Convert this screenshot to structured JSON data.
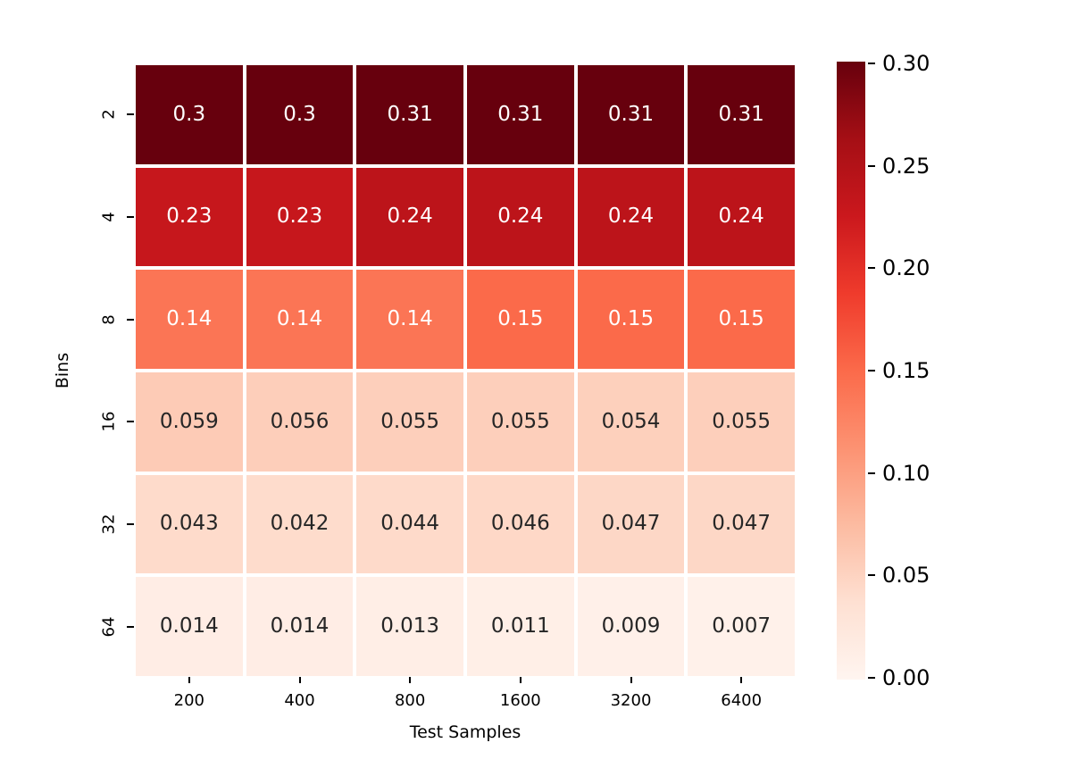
{
  "chart_data": {
    "type": "heatmap",
    "title": "",
    "xlabel": "Test Samples",
    "ylabel": "Bins",
    "x_categories": [
      "200",
      "400",
      "800",
      "1600",
      "3200",
      "6400"
    ],
    "y_categories": [
      "2",
      "4",
      "8",
      "16",
      "32",
      "64"
    ],
    "values": [
      [
        0.3,
        0.3,
        0.31,
        0.31,
        0.31,
        0.31
      ],
      [
        0.23,
        0.23,
        0.24,
        0.24,
        0.24,
        0.24
      ],
      [
        0.14,
        0.14,
        0.14,
        0.15,
        0.15,
        0.15
      ],
      [
        0.059,
        0.056,
        0.055,
        0.055,
        0.054,
        0.055
      ],
      [
        0.043,
        0.042,
        0.044,
        0.046,
        0.047,
        0.047
      ],
      [
        0.014,
        0.014,
        0.013,
        0.011,
        0.009,
        0.007
      ]
    ],
    "cell_labels": [
      [
        "0.3",
        "0.3",
        "0.31",
        "0.31",
        "0.31",
        "0.31"
      ],
      [
        "0.23",
        "0.23",
        "0.24",
        "0.24",
        "0.24",
        "0.24"
      ],
      [
        "0.14",
        "0.14",
        "0.14",
        "0.15",
        "0.15",
        "0.15"
      ],
      [
        "0.059",
        "0.056",
        "0.055",
        "0.055",
        "0.054",
        "0.055"
      ],
      [
        "0.043",
        "0.042",
        "0.044",
        "0.046",
        "0.047",
        "0.047"
      ],
      [
        "0.014",
        "0.014",
        "0.013",
        "0.011",
        "0.009",
        "0.007"
      ]
    ],
    "vmin": 0.0,
    "vmax": 0.3,
    "colormap": "Reds",
    "colormap_stops": [
      "#fff5f0",
      "#fee0d2",
      "#fcbba1",
      "#fc9272",
      "#fb6a4a",
      "#ef3b2c",
      "#cb181d",
      "#a50f15",
      "#67000d"
    ],
    "colorbar_ticks": [
      "0.30",
      "0.25",
      "0.20",
      "0.15",
      "0.10",
      "0.05",
      "0.00"
    ],
    "colorbar_position": "right",
    "grid": false,
    "legend": "none",
    "annotation_colors": {
      "on_dark": "#ffffff",
      "on_light": "#262626"
    },
    "tick_color": "#000000",
    "cell_gap_color": "#ffffff"
  }
}
